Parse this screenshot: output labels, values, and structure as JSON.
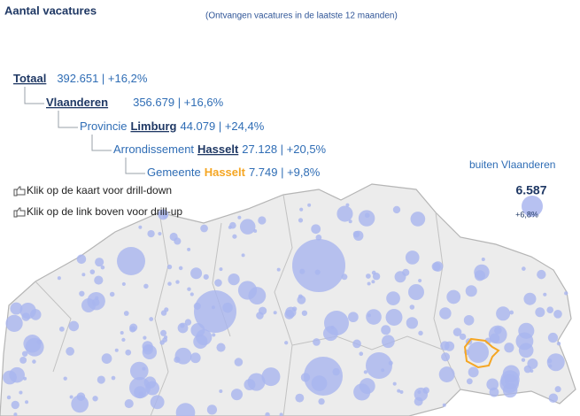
{
  "header": {
    "title": "Aantal vacatures",
    "subtitle": "(Ontvangen vacatures in de laatste 12 maanden)"
  },
  "breadcrumb": [
    {
      "link": "Totaal",
      "stats": "392.651 | +16,2%"
    },
    {
      "link": "Vlaanderen",
      "stats": "356.679 | +16,6%"
    },
    {
      "prefix": "Provincie",
      "link": "Limburg",
      "stats": "44.079 | +24,4%"
    },
    {
      "prefix": "Arrondissement",
      "link": "Hasselt",
      "stats": "27.128 | +20,5%"
    },
    {
      "prefix": "Gemeente",
      "link": "Hasselt",
      "stats": "7.749 | +9,8%"
    }
  ],
  "instructions": [
    "Klik op de kaart voor drill-down",
    "Klik op de link boven voor drill-up"
  ],
  "outside": {
    "label": "buiten Vlaanderen",
    "value": "6.587",
    "change": "+6,8%"
  }
}
